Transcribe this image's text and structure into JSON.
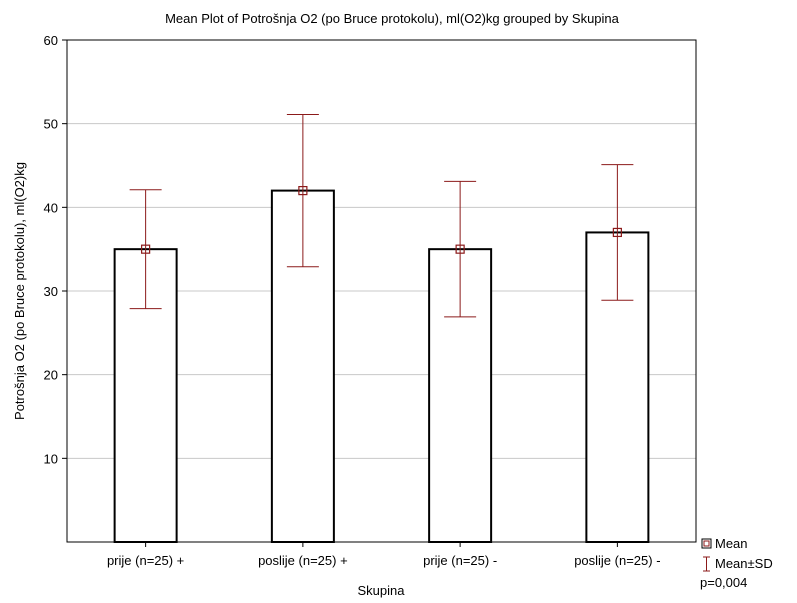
{
  "chart_data": {
    "type": "bar",
    "title": "Mean Plot of Potrošnja O2 (po Bruce protokolu),  ml(O2)kg grouped by  Skupina",
    "xlabel": "Skupina",
    "ylabel": "Potrošnja O2 (po Bruce protokolu),  ml(O2)kg",
    "categories": [
      "prije (n=25) +",
      "poslije (n=25) +",
      "prije (n=25) -",
      "poslije (n=25) -"
    ],
    "values": [
      35,
      42,
      35,
      37
    ],
    "sd_low": [
      27.9,
      32.9,
      26.9,
      28.9
    ],
    "sd_high": [
      42.1,
      51.1,
      43.1,
      45.1
    ],
    "ylim": [
      0,
      60
    ],
    "yticks": [
      10,
      20,
      30,
      40,
      50,
      60
    ],
    "grid": true,
    "legend": {
      "placement": "bottom-right",
      "mean_label": "Mean",
      "sd_label": "Mean±SD",
      "p_value": "p=0,004"
    },
    "colors": {
      "bar_fill": "#ffffff",
      "bar_stroke": "#000000",
      "error_bar": "#8b1a1a",
      "mean_marker": "#8b1a1a",
      "grid": "#c8c8c8",
      "axis": "#000000"
    }
  }
}
